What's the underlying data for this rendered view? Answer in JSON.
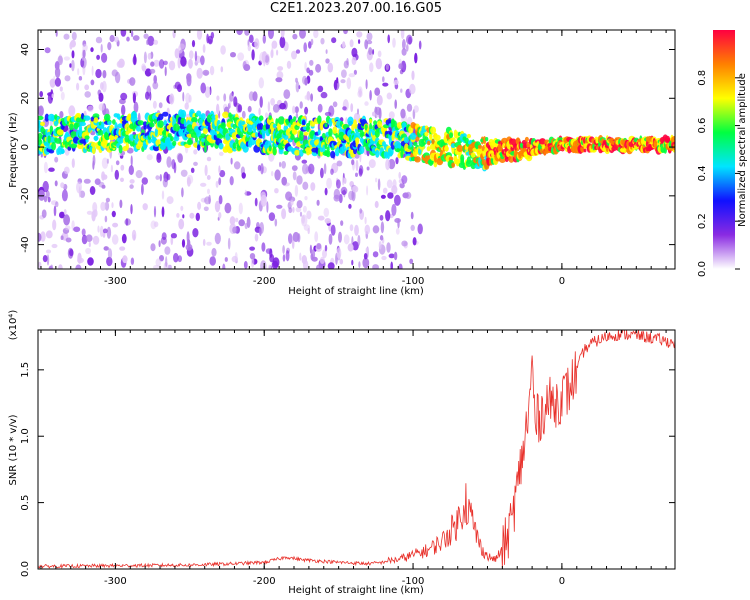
{
  "page": {
    "title": "C2E1.2023.207.00.16.G05"
  },
  "colors": {
    "snr_line": "#e8302a",
    "axis": "#000000",
    "background": "#ffffff"
  },
  "chart_data": [
    {
      "type": "heatmap",
      "title": "",
      "xlabel": "Height of straight line (km)",
      "ylabel": "Frequency (Hz)",
      "xlim": [
        -352,
        76
      ],
      "ylim": [
        -50,
        48
      ],
      "xticks": [
        -300,
        -200,
        -100,
        0
      ],
      "xtick_labels": [
        "-300",
        "-200",
        "-100",
        "0"
      ],
      "yticks": [
        -40,
        -20,
        0,
        20,
        40
      ],
      "ytick_labels": [
        "-40",
        "-20",
        "0",
        "20",
        "40"
      ],
      "ridge": [
        [
          -352,
          5
        ],
        [
          -250,
          7
        ],
        [
          -200,
          5
        ],
        [
          -150,
          4
        ],
        [
          -120,
          4
        ],
        [
          -80,
          0
        ],
        [
          -50,
          -2
        ],
        [
          -30,
          -1
        ],
        [
          0,
          1
        ],
        [
          40,
          1
        ],
        [
          76,
          1
        ]
      ],
      "colorbar": {
        "label": "Normalized spectral amplitude",
        "range": [
          0,
          1
        ],
        "ticks": [
          0.0,
          0.2,
          0.4,
          0.6,
          0.8
        ],
        "tick_labels": [
          "0.0",
          "0.2",
          "0.4",
          "0.6",
          "0.8"
        ],
        "colormap": [
          "#ffffff",
          "#8a2be2",
          "#1010ff",
          "#00e5ff",
          "#00ff40",
          "#ffff00",
          "#ff8000",
          "#ff0040"
        ]
      }
    },
    {
      "type": "line",
      "title": "",
      "xlabel": "Height of straight line (km)",
      "ylabel": "SNR (10 * v/v)",
      "multiplier_label": "(x10⁴)",
      "xlim": [
        -352,
        76
      ],
      "ylim": [
        0,
        18000
      ],
      "xticks": [
        -300,
        -200,
        -100,
        0
      ],
      "xtick_labels": [
        "-300",
        "-200",
        "-100",
        "0"
      ],
      "yticks": [
        0,
        5000,
        10000,
        15000
      ],
      "ytick_labels": [
        "0.0",
        "0.5",
        "1.0",
        "1.5"
      ],
      "series": [
        {
          "points": [
            [
              -352,
              200
            ],
            [
              -300,
              250
            ],
            [
              -250,
              300
            ],
            [
              -220,
              400
            ],
            [
              -200,
              500
            ],
            [
              -185,
              900
            ],
            [
              -175,
              700
            ],
            [
              -150,
              500
            ],
            [
              -130,
              400
            ],
            [
              -110,
              600
            ],
            [
              -100,
              900
            ],
            [
              -90,
              1200
            ],
            [
              -80,
              1800
            ],
            [
              -70,
              3000
            ],
            [
              -65,
              4500
            ],
            [
              -60,
              3000
            ],
            [
              -55,
              1500
            ],
            [
              -50,
              800
            ],
            [
              -45,
              600
            ],
            [
              -40,
              1200
            ],
            [
              -35,
              3000
            ],
            [
              -30,
              6000
            ],
            [
              -26,
              9000
            ],
            [
              -22,
              12000
            ],
            [
              -20,
              15500
            ],
            [
              -18,
              11000
            ],
            [
              -15,
              11500
            ],
            [
              -10,
              12500
            ],
            [
              -5,
              12500
            ],
            [
              0,
              13000
            ],
            [
              5,
              13500
            ],
            [
              10,
              15000
            ],
            [
              15,
              16500
            ],
            [
              20,
              17000
            ],
            [
              30,
              17500
            ],
            [
              40,
              17700
            ],
            [
              50,
              17600
            ],
            [
              60,
              17400
            ],
            [
              76,
              17000
            ]
          ]
        }
      ]
    }
  ]
}
